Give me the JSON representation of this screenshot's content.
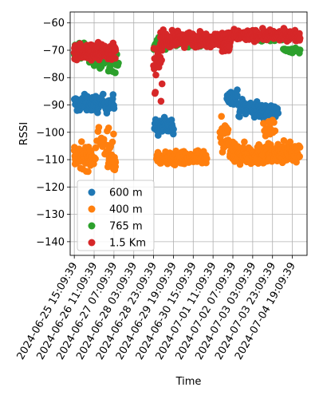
{
  "chart_data": {
    "type": "scatter",
    "xlabel": "Time",
    "ylabel": "RSSI",
    "ylim": [
      -145,
      -56
    ],
    "xlim": [
      "2024-06-25 11:00:00",
      "2024-07-05 10:00:00"
    ],
    "yticks": [
      -60,
      -70,
      -80,
      -90,
      -100,
      -110,
      -120,
      -130,
      -140
    ],
    "xticks": [
      "2024-06-25 15:09:39",
      "2024-06-26 11:09:39",
      "2024-06-27 07:09:39",
      "2024-06-28 03:09:39",
      "2024-06-28 23:09:39",
      "2024-06-29 19:09:39",
      "2024-06-30 15:09:39",
      "2024-07-01 11:09:39",
      "2024-07-02 07:09:39",
      "2024-07-03 03:09:39",
      "2024-07-03 23:09:39",
      "2024-07-04 19:09:39"
    ],
    "grid": true,
    "legend_position": "lower-left",
    "series": [
      {
        "name": "600 m",
        "color": "#1f77b4",
        "segments": [
          {
            "start": "2024-06-25 15:00",
            "end": "2024-06-27 07:30",
            "center": -89.5,
            "spread": 2.5,
            "count": 90
          },
          {
            "start": "2024-06-29 00:00",
            "end": "2024-06-29 19:30",
            "center": -98.0,
            "spread": 2.5,
            "count": 55
          },
          {
            "start": "2024-07-02 01:00",
            "end": "2024-07-02 12:00",
            "center": -87.0,
            "spread": 2.0,
            "count": 25
          },
          {
            "start": "2024-07-02 12:00",
            "end": "2024-07-03 02:30",
            "center": -91.0,
            "spread": 2.5,
            "count": 35
          },
          {
            "start": "2024-07-03 02:30",
            "end": "2024-07-04 05:00",
            "center": -92.0,
            "spread": 2.5,
            "count": 55
          }
        ]
      },
      {
        "name": "400 m",
        "color": "#ff7f0e",
        "segments": [
          {
            "start": "2024-06-25 15:00",
            "end": "2024-06-26 09:00",
            "center": -109.0,
            "spread": 3.5,
            "count": 70
          },
          {
            "start": "2024-06-26 09:00",
            "end": "2024-06-27 08:00",
            "center": -104.0,
            "spread": 8.0,
            "count": 25
          },
          {
            "start": "2024-06-27 01:00",
            "end": "2024-06-27 09:00",
            "center": -110.5,
            "spread": 2.5,
            "count": 35
          },
          {
            "start": "2024-06-29 02:00",
            "end": "2024-07-01 05:00",
            "center": -109.5,
            "spread": 2.0,
            "count": 120
          },
          {
            "start": "2024-07-01 18:00",
            "end": "2024-07-02 04:00",
            "center": -103.0,
            "spread": 6.0,
            "count": 25
          },
          {
            "start": "2024-07-02 04:00",
            "end": "2024-07-04 06:00",
            "center": -108.0,
            "spread": 3.0,
            "count": 150
          },
          {
            "start": "2024-07-03 14:00",
            "end": "2024-07-04 02:00",
            "center": -98.5,
            "spread": 2.0,
            "count": 15
          },
          {
            "start": "2024-07-04 06:00",
            "end": "2024-07-05 03:00",
            "center": -107.5,
            "spread": 3.0,
            "count": 60
          }
        ]
      },
      {
        "name": "765 m",
        "color": "#2ca02c",
        "segments": [
          {
            "start": "2024-06-25 15:00",
            "end": "2024-06-26 05:00",
            "center": -70.0,
            "spread": 2.5,
            "count": 30
          },
          {
            "start": "2024-06-26 05:00",
            "end": "2024-06-27 12:00",
            "center": -74.0,
            "spread": 3.0,
            "count": 40
          },
          {
            "start": "2024-06-28 23:00",
            "end": "2024-06-29 12:00",
            "center": -68.0,
            "spread": 2.0,
            "count": 20
          },
          {
            "start": "2024-06-29 12:00",
            "end": "2024-07-01 00:00",
            "center": -67.0,
            "spread": 1.5,
            "count": 40
          },
          {
            "start": "2024-07-03 10:00",
            "end": "2024-07-04 10:00",
            "center": -65.5,
            "spread": 1.5,
            "count": 30
          },
          {
            "start": "2024-07-04 10:00",
            "end": "2024-07-05 03:00",
            "center": -70.0,
            "spread": 1.0,
            "count": 30
          }
        ]
      },
      {
        "name": "1.5 Km",
        "color": "#d62728",
        "segments": [
          {
            "start": "2024-06-25 15:00",
            "end": "2024-06-27 09:00",
            "center": -70.5,
            "spread": 2.5,
            "count": 180
          },
          {
            "start": "2024-06-28 23:00",
            "end": "2024-06-29 08:00",
            "center": -76.0,
            "spread": 8.0,
            "count": 25
          },
          {
            "start": "2024-06-29 06:00",
            "end": "2024-07-02 06:00",
            "center": -66.0,
            "spread": 2.0,
            "count": 300
          },
          {
            "start": "2024-07-01 20:00",
            "end": "2024-07-02 04:00",
            "center": -69.0,
            "spread": 2.0,
            "count": 25
          },
          {
            "start": "2024-07-02 06:00",
            "end": "2024-07-05 03:00",
            "center": -64.5,
            "spread": 1.5,
            "count": 220
          }
        ]
      }
    ]
  }
}
